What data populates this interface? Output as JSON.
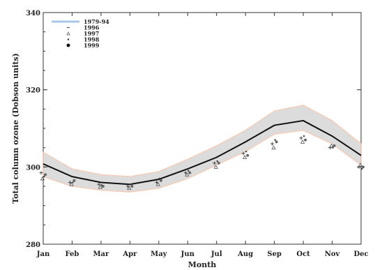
{
  "chart_data": {
    "type": "line",
    "xlabel": "Month",
    "ylabel": "Total column ozone (Dobson units)",
    "categories": [
      "Jan",
      "Feb",
      "Mar",
      "Apr",
      "May",
      "Jun",
      "Jul",
      "Aug",
      "Sep",
      "Oct",
      "Nov",
      "Dec"
    ],
    "y_tick_labels": [
      "280",
      "300",
      "320",
      "340"
    ],
    "ylim": [
      280,
      340
    ],
    "grid": false,
    "legend_position": "top-left",
    "legend": [
      "1979-94",
      "1996",
      "1997",
      "1998",
      "1999"
    ],
    "band": {
      "name": "1979-94",
      "lower": [
        297.5,
        295.0,
        294.0,
        293.5,
        294.5,
        297.0,
        300.5,
        304.0,
        308.5,
        309.5,
        306.0,
        300.5
      ],
      "upper": [
        303.8,
        299.5,
        298.0,
        297.5,
        298.8,
        302.0,
        305.5,
        309.5,
        314.5,
        316.0,
        312.0,
        306.0
      ]
    },
    "mean": [
      300.8,
      297.5,
      296.0,
      295.5,
      296.8,
      299.5,
      302.5,
      306.5,
      310.8,
      312.0,
      308.0,
      303.0
    ],
    "series": [
      {
        "name": "1996",
        "marker": "plus",
        "values": [
          298.5,
          296.0,
          295.5,
          295.0,
          296.0,
          298.5,
          301.0,
          303.5,
          306.0,
          307.5,
          305.0,
          300.0
        ]
      },
      {
        "name": "1997",
        "marker": "triangle",
        "values": [
          297.0,
          295.5,
          294.8,
          294.5,
          295.5,
          298.0,
          300.0,
          302.5,
          305.0,
          306.5,
          305.5,
          300.5
        ]
      },
      {
        "name": "1998",
        "marker": "dot",
        "values": [
          297.5,
          296.0,
          295.3,
          295.5,
          297.0,
          299.0,
          301.5,
          304.0,
          307.0,
          308.0,
          305.0,
          299.5
        ]
      },
      {
        "name": "1999",
        "marker": "filled-circle",
        "values": [
          298.0,
          296.5,
          295.0,
          295.0,
          296.5,
          298.5,
          301.0,
          303.0,
          306.5,
          307.0,
          305.5,
          300.0
        ]
      }
    ],
    "colors": {
      "band": "#d9d9d9",
      "band_edge": "#f2c9b5",
      "mean": "#111111",
      "axis": "#333333",
      "legend_swatch": "#a9c8e8"
    }
  }
}
